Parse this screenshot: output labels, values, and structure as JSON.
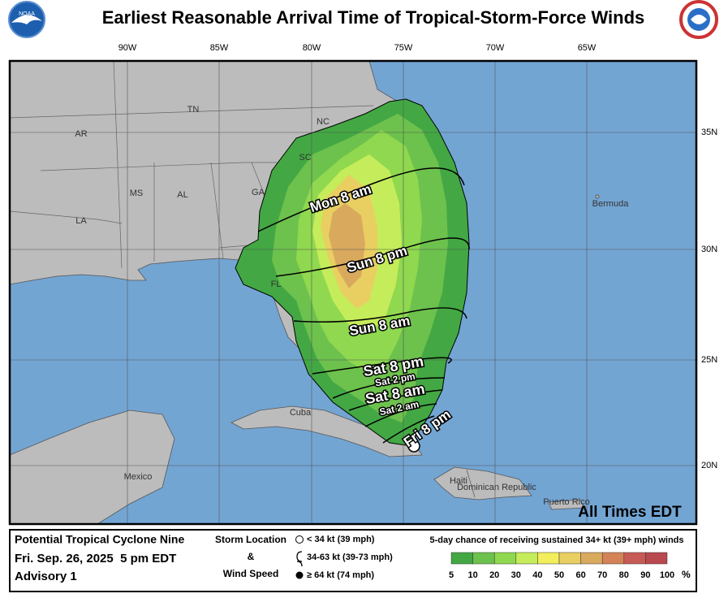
{
  "header": {
    "title": "Earliest Reasonable Arrival Time of Tropical-Storm-Force Winds",
    "agency": "NOAA"
  },
  "map": {
    "lon_labels": [
      "90W",
      "85W",
      "80W",
      "75W",
      "70W",
      "65W"
    ],
    "lat_labels": [
      "35N",
      "30N",
      "25N",
      "20N"
    ],
    "places": [
      "AR",
      "TN",
      "NC",
      "SC",
      "MS",
      "AL",
      "GA",
      "LA",
      "FL",
      "Bermuda",
      "Cuba",
      "Mexico",
      "Haiti",
      "Dominican Republic",
      "Puerto Rico"
    ],
    "arrival_times": [
      "Mon 8 am",
      "Sun 8 pm",
      "Sun 8 am",
      "Sat 8 pm",
      "Sat 2 pm",
      "Sat 8 am",
      "Sat 2 am",
      "Fri 8 pm"
    ],
    "times_note": "All Times EDT"
  },
  "footer": {
    "storm_name": "Potential Tropical Cyclone Nine",
    "issued": "Fri. Sep. 26, 2025  5 pm EDT",
    "advisory": "Advisory 1",
    "symbol_key": {
      "title_1": "Storm Location",
      "title_2": "&",
      "title_3": "Wind Speed",
      "entries": [
        "< 34 kt (39 mph)",
        "34-63 kt (39-73 mph)",
        "≥ 64 kt (74 mph)"
      ]
    },
    "scale": {
      "title": "5-day chance of receiving sustained 34+ kt (39+ mph) winds",
      "labels": [
        5,
        10,
        20,
        30,
        40,
        50,
        60,
        70,
        80,
        90,
        100
      ],
      "unit": "%",
      "colors": [
        "#43a843",
        "#6dc14d",
        "#8fd84f",
        "#c5ec5a",
        "#f2ee5c",
        "#e9cf62",
        "#d9a95e",
        "#d58258",
        "#c75a55",
        "#b9484f",
        "#b35fb8"
      ]
    }
  }
}
